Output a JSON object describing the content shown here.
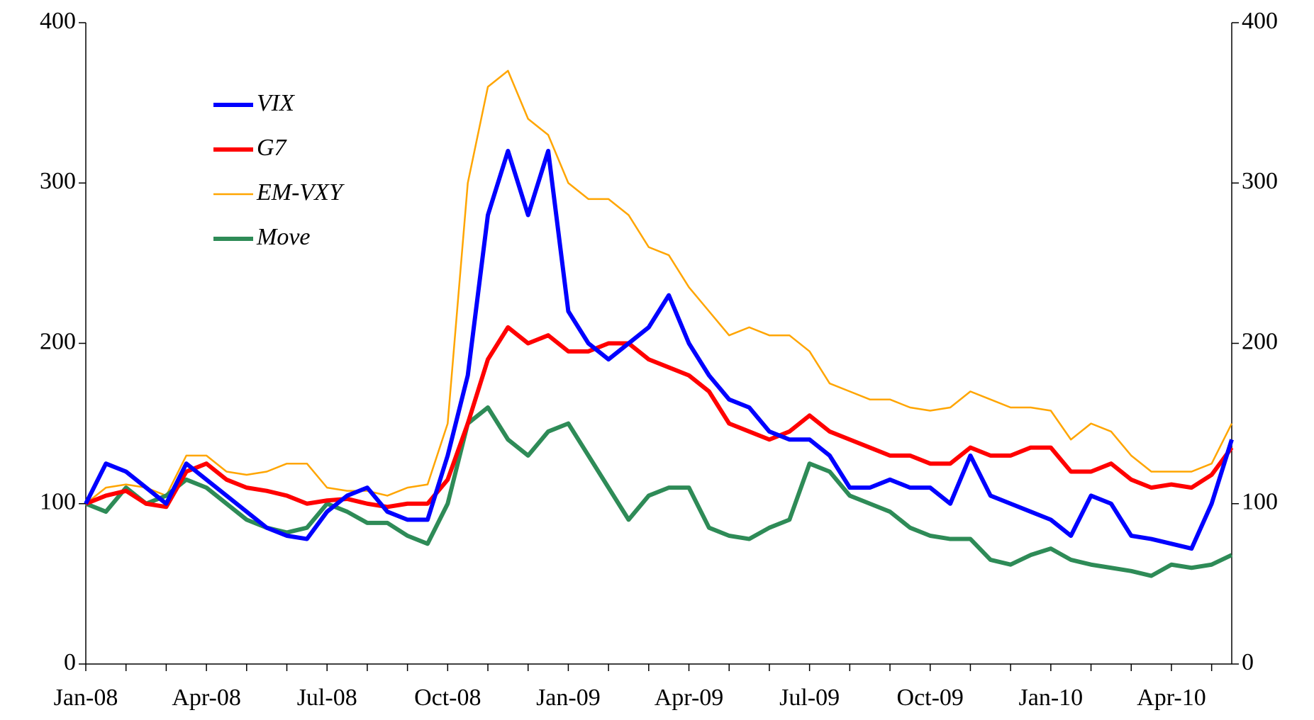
{
  "chart_data": {
    "type": "line",
    "categories": [
      "Jan-08",
      null,
      null,
      null,
      null,
      null,
      "Apr-08",
      null,
      null,
      null,
      null,
      null,
      "Jul-08",
      null,
      null,
      null,
      null,
      null,
      "Oct-08",
      null,
      null,
      null,
      null,
      null,
      "Jan-09",
      null,
      null,
      null,
      null,
      null,
      "Apr-09",
      null,
      null,
      null,
      null,
      null,
      "Jul-09",
      null,
      null,
      null,
      null,
      null,
      "Oct-09",
      null,
      null,
      null,
      null,
      null,
      "Jan-10",
      null,
      null,
      null,
      null,
      null,
      "Apr-10",
      null,
      null,
      null
    ],
    "series": [
      {
        "name": "VIX",
        "color": "#0000ff",
        "values": [
          100,
          125,
          120,
          110,
          100,
          125,
          115,
          105,
          95,
          85,
          80,
          78,
          95,
          105,
          110,
          95,
          90,
          90,
          130,
          180,
          280,
          320,
          280,
          320,
          220,
          200,
          190,
          200,
          210,
          230,
          200,
          180,
          165,
          160,
          145,
          140,
          140,
          130,
          110,
          110,
          115,
          110,
          110,
          100,
          130,
          105,
          100,
          95,
          90,
          80,
          105,
          100,
          80,
          78,
          75,
          72,
          100,
          140
        ]
      },
      {
        "name": "G7",
        "color": "#ff0000",
        "values": [
          100,
          105,
          108,
          100,
          98,
          120,
          125,
          115,
          110,
          108,
          105,
          100,
          102,
          103,
          100,
          98,
          100,
          100,
          115,
          150,
          190,
          210,
          200,
          205,
          195,
          195,
          200,
          200,
          190,
          185,
          180,
          170,
          150,
          145,
          140,
          145,
          155,
          145,
          140,
          135,
          130,
          130,
          125,
          125,
          135,
          130,
          130,
          135,
          135,
          120,
          120,
          125,
          115,
          110,
          112,
          110,
          118,
          135
        ]
      },
      {
        "name": "EM-VXY",
        "color": "#ffa500",
        "values": [
          100,
          110,
          112,
          110,
          105,
          130,
          130,
          120,
          118,
          120,
          125,
          125,
          110,
          108,
          108,
          105,
          110,
          112,
          150,
          300,
          360,
          370,
          340,
          330,
          300,
          290,
          290,
          280,
          260,
          255,
          235,
          220,
          205,
          210,
          205,
          205,
          195,
          175,
          170,
          165,
          165,
          160,
          158,
          160,
          170,
          165,
          160,
          160,
          158,
          140,
          150,
          145,
          130,
          120,
          120,
          120,
          125,
          150
        ]
      },
      {
        "name": "Move",
        "color": "#2e8b57",
        "values": [
          100,
          95,
          110,
          100,
          105,
          115,
          110,
          100,
          90,
          85,
          82,
          85,
          100,
          95,
          88,
          88,
          80,
          75,
          100,
          150,
          160,
          140,
          130,
          145,
          150,
          130,
          110,
          90,
          105,
          110,
          110,
          85,
          80,
          78,
          85,
          90,
          125,
          120,
          105,
          100,
          95,
          85,
          80,
          78,
          78,
          65,
          62,
          68,
          72,
          65,
          62,
          60,
          58,
          55,
          62,
          60,
          62,
          68
        ]
      }
    ],
    "ylim": [
      0,
      400
    ],
    "yticks": [
      0,
      100,
      200,
      300,
      400
    ],
    "y2lim": [
      0,
      400
    ],
    "y2ticks": [
      0,
      100,
      200,
      300,
      400
    ],
    "widths": [
      6,
      6,
      2.5,
      6
    ]
  }
}
